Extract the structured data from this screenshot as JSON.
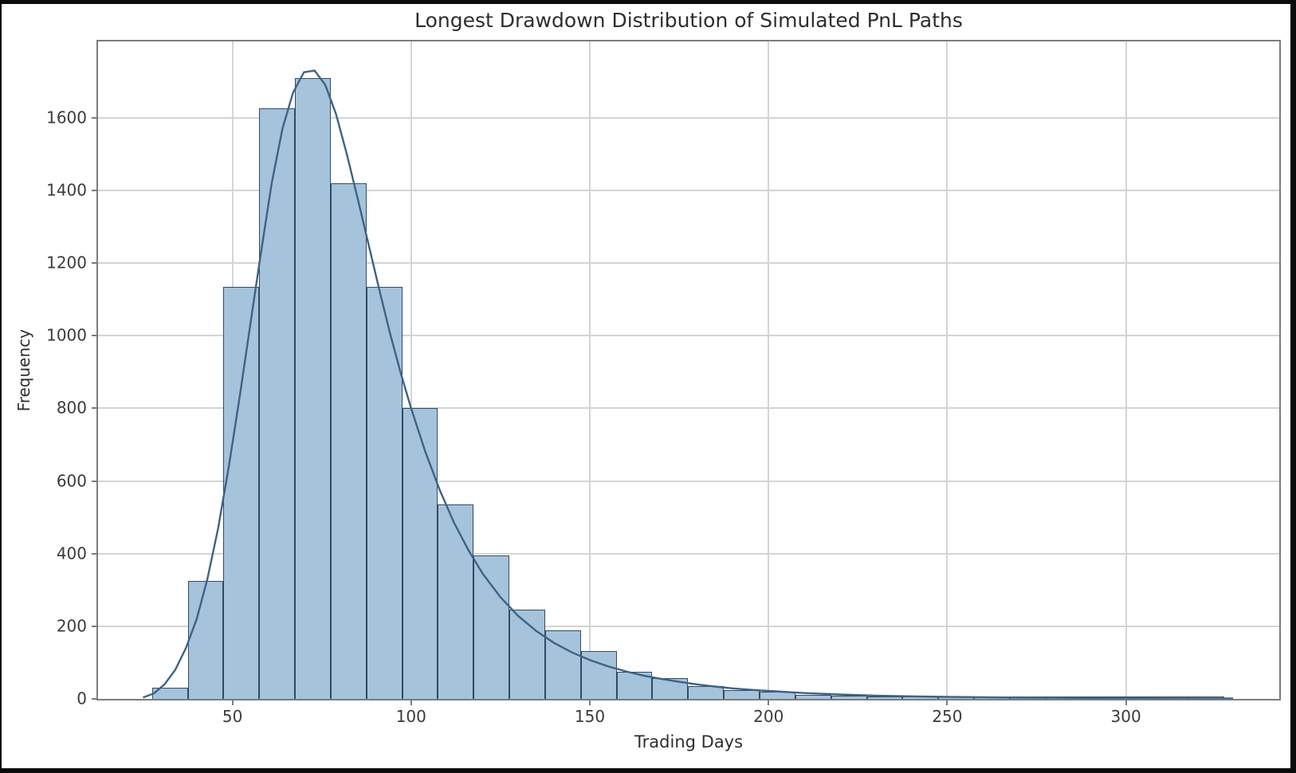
{
  "chart_data": {
    "type": "histogram",
    "title": "Longest Drawdown Distribution of Simulated PnL Paths",
    "xlabel": "Trading Days",
    "ylabel": "Frequency",
    "grid": true,
    "legend": "none",
    "xlim": [
      12.4,
      342.9
    ],
    "ylim": [
      0,
      1810
    ],
    "x_ticks": [
      50,
      100,
      150,
      200,
      250,
      300
    ],
    "y_ticks": [
      0,
      200,
      400,
      600,
      800,
      1000,
      1200,
      1400,
      1600
    ],
    "bin_start": 27.5,
    "bin_width": 10,
    "bin_counts": [
      30,
      325,
      1135,
      1625,
      1710,
      1420,
      1135,
      800,
      535,
      395,
      245,
      188,
      132,
      75,
      57,
      35,
      25,
      19,
      12,
      8,
      6,
      5,
      4,
      3,
      2,
      2,
      1,
      1,
      1,
      1
    ],
    "kde_line": {
      "x": [
        25,
        28,
        31,
        34,
        37,
        40,
        43,
        46,
        49,
        52,
        55,
        58,
        61,
        64,
        67,
        70,
        73,
        76,
        79,
        82,
        85,
        88,
        91,
        94,
        97,
        100,
        104,
        108,
        112,
        116,
        120,
        125,
        130,
        135,
        140,
        145,
        150,
        155,
        160,
        165,
        170,
        175,
        180,
        185,
        190,
        195,
        200,
        210,
        220,
        230,
        240,
        250,
        260,
        270,
        280,
        290,
        300,
        310,
        320,
        330
      ],
      "y": [
        4,
        15,
        40,
        80,
        140,
        220,
        330,
        470,
        640,
        830,
        1030,
        1230,
        1420,
        1570,
        1670,
        1725,
        1730,
        1690,
        1610,
        1500,
        1380,
        1255,
        1130,
        1010,
        900,
        800,
        680,
        575,
        485,
        410,
        345,
        280,
        228,
        187,
        154,
        128,
        107,
        90,
        76,
        64,
        55,
        47,
        40,
        34,
        29,
        25,
        22,
        16,
        12,
        9,
        7,
        5.5,
        4.5,
        3.5,
        3,
        2.5,
        2,
        1.6,
        1.3,
        1
      ]
    },
    "colors": {
      "bar_fill": "#a6c3dc",
      "bar_edge": "#314a63",
      "kde": "#3d6384",
      "grid": "#d4d4d4",
      "spine": "#7c7c7c",
      "tick_text": "#3b3b3b",
      "title_text": "#2e2e2e",
      "canvas_bg": "#ffffff",
      "frame_bg": "#0b0b0b"
    }
  }
}
